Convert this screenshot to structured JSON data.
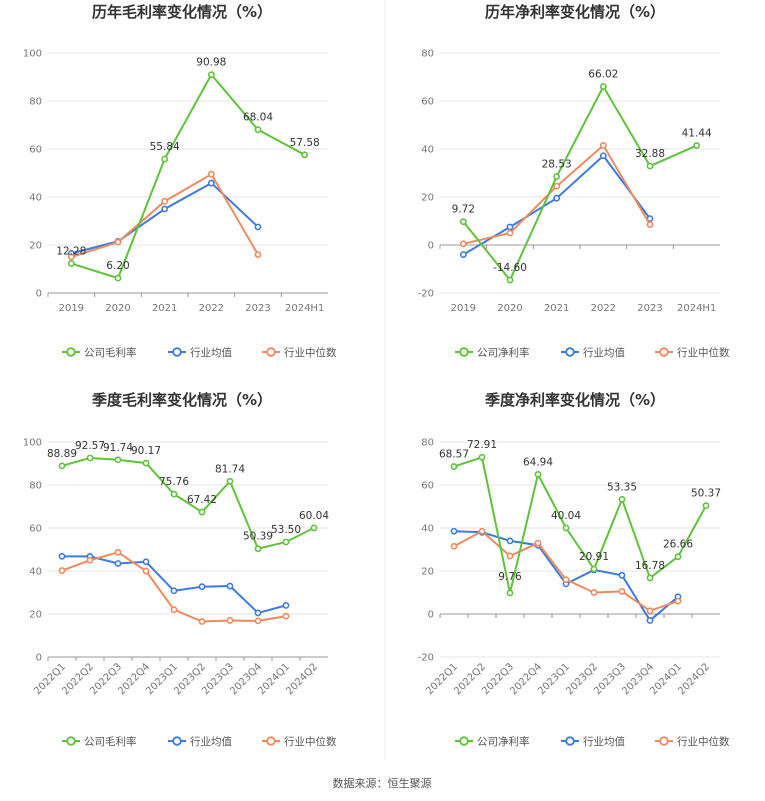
{
  "colors": {
    "company": "#5ec33a",
    "avg": "#3d7be0",
    "median": "#f08a5d"
  },
  "legend": {
    "avg": "行业均值",
    "median": "行业中位数"
  },
  "source": "数据来源：恒生聚源",
  "chart_data": [
    {
      "type": "line",
      "title": "历年毛利率变化情况（%）",
      "categories": [
        "2019",
        "2020",
        "2021",
        "2022",
        "2023",
        "2024H1"
      ],
      "ylim": [
        0,
        100
      ],
      "yticks": [
        0,
        20,
        40,
        60,
        80,
        100
      ],
      "grid": true,
      "legend_position": "bottom",
      "series": [
        {
          "name": "公司毛利率",
          "key": "company",
          "values": [
            12.28,
            6.2,
            55.84,
            90.98,
            68.04,
            57.58
          ],
          "labels": [
            "12.28",
            "6.20",
            "55.84",
            "90.98",
            "68.04",
            "57.58"
          ]
        },
        {
          "name": "行业均值",
          "key": "avg",
          "values": [
            16.5,
            21.5,
            35.0,
            45.8,
            27.5,
            null
          ]
        },
        {
          "name": "行业中位数",
          "key": "median",
          "values": [
            15.0,
            21.2,
            38.2,
            49.5,
            16.0,
            null
          ]
        }
      ]
    },
    {
      "type": "line",
      "title": "历年净利率变化情况（%）",
      "categories": [
        "2019",
        "2020",
        "2021",
        "2022",
        "2023",
        "2024H1"
      ],
      "ylim": [
        -20,
        80
      ],
      "yticks": [
        -20,
        0,
        20,
        40,
        60,
        80
      ],
      "grid": true,
      "legend_position": "bottom",
      "series": [
        {
          "name": "公司净利率",
          "key": "company",
          "values": [
            9.72,
            -14.6,
            28.53,
            66.02,
            32.88,
            41.44
          ],
          "labels": [
            "9.72",
            "-14.60",
            "28.53",
            "66.02",
            "32.88",
            "41.44"
          ]
        },
        {
          "name": "行业均值",
          "key": "avg",
          "values": [
            -4.0,
            7.5,
            19.5,
            37.2,
            11.0,
            null
          ]
        },
        {
          "name": "行业中位数",
          "key": "median",
          "values": [
            0.5,
            5.0,
            24.5,
            41.5,
            8.5,
            null
          ]
        }
      ]
    },
    {
      "type": "line",
      "title": "季度毛利率变化情况（%）",
      "categories": [
        "2022Q1",
        "2022Q2",
        "2022Q3",
        "2022Q4",
        "2023Q1",
        "2023Q2",
        "2023Q3",
        "2023Q4",
        "2024Q1",
        "2024Q2"
      ],
      "ylim": [
        0,
        100
      ],
      "yticks": [
        0,
        20,
        40,
        60,
        80,
        100
      ],
      "grid": true,
      "legend_position": "bottom",
      "series": [
        {
          "name": "公司毛利率",
          "key": "company",
          "values": [
            88.89,
            92.57,
            91.74,
            90.17,
            75.76,
            67.42,
            81.74,
            50.39,
            53.5,
            60.04
          ],
          "labels": [
            "88.89",
            "92.57",
            "91.74",
            "90.17",
            "75.76",
            "67.42",
            "81.74",
            "50.39",
            "53.50",
            "60.04"
          ]
        },
        {
          "name": "行业均值",
          "key": "avg",
          "values": [
            46.8,
            46.8,
            43.5,
            44.3,
            30.8,
            32.7,
            33.0,
            20.5,
            24.0,
            null
          ]
        },
        {
          "name": "行业中位数",
          "key": "median",
          "values": [
            40.2,
            45.0,
            48.7,
            40.0,
            22.0,
            16.5,
            17.0,
            16.8,
            19.0,
            null
          ]
        }
      ]
    },
    {
      "type": "line",
      "title": "季度净利率变化情况（%）",
      "categories": [
        "2022Q1",
        "2022Q2",
        "2022Q3",
        "2022Q4",
        "2023Q1",
        "2023Q2",
        "2023Q3",
        "2023Q4",
        "2024Q1",
        "2024Q2"
      ],
      "ylim": [
        -20,
        80
      ],
      "yticks": [
        -20,
        0,
        20,
        40,
        60,
        80
      ],
      "grid": true,
      "legend_position": "bottom",
      "series": [
        {
          "name": "公司净利率",
          "key": "company",
          "values": [
            68.57,
            72.91,
            9.76,
            64.94,
            40.04,
            20.91,
            53.35,
            16.78,
            26.66,
            50.37
          ],
          "labels": [
            "68.57",
            "72.91",
            "9.76",
            "64.94",
            "40.04",
            "20.91",
            "53.35",
            "16.78",
            "26.66",
            "50.37"
          ]
        },
        {
          "name": "行业均值",
          "key": "avg",
          "values": [
            38.5,
            38.0,
            34.0,
            32.0,
            14.0,
            20.5,
            18.0,
            -3.0,
            8.0,
            null
          ]
        },
        {
          "name": "行业中位数",
          "key": "median",
          "values": [
            31.5,
            38.5,
            27.0,
            33.0,
            16.0,
            10.0,
            10.5,
            1.5,
            6.0,
            null
          ]
        }
      ]
    }
  ]
}
